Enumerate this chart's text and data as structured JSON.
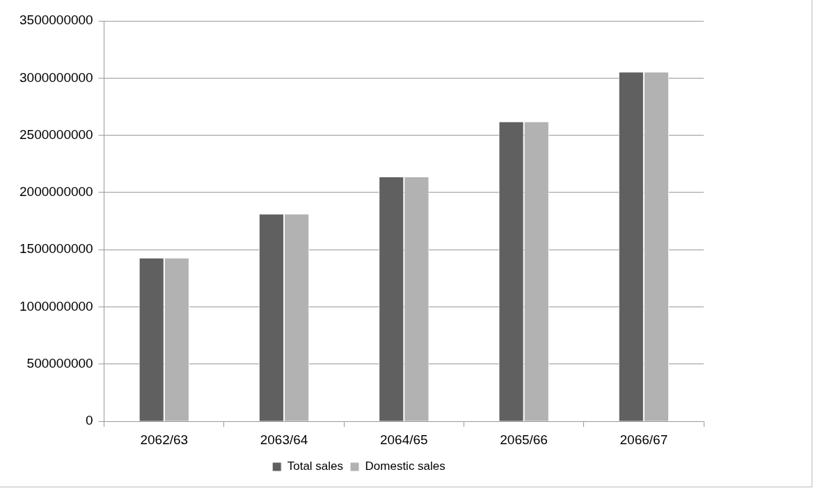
{
  "chart_data": {
    "type": "bar",
    "categories": [
      "2062/63",
      "2063/64",
      "2064/65",
      "2065/66",
      "2066/67"
    ],
    "series": [
      {
        "name": "Total sales",
        "color": "#606060",
        "values": [
          1430000000,
          1815000000,
          2140000000,
          2620000000,
          3055000000
        ]
      },
      {
        "name": "Domestic sales",
        "color": "#b2b2b2",
        "values": [
          1430000000,
          1815000000,
          2140000000,
          2620000000,
          3055000000
        ]
      }
    ],
    "ylim": [
      0,
      3500000000
    ],
    "yticks": [
      0,
      500000000,
      1000000000,
      1500000000,
      2000000000,
      2500000000,
      3000000000,
      3500000000
    ],
    "grid": "y",
    "legend": "bottom"
  }
}
